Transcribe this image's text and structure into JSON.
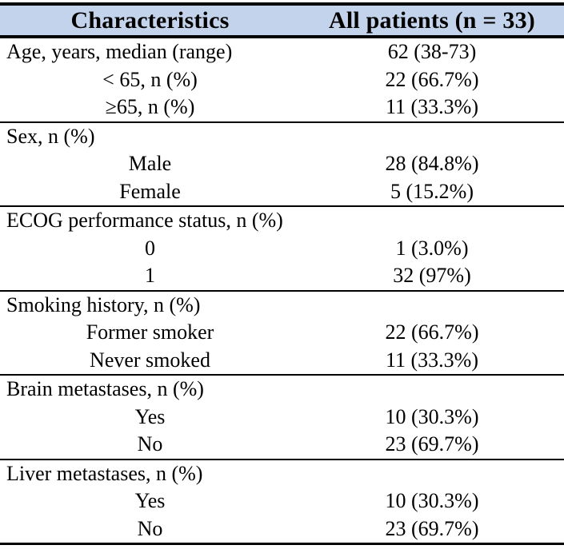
{
  "table": {
    "columns": [
      {
        "label": "Characteristics"
      },
      {
        "label": "All patients (n = 33)"
      }
    ],
    "colors": {
      "header_bg": "#C4D3EC",
      "rule": "#000000",
      "text": "#000000"
    },
    "sections": [
      {
        "rows": [
          {
            "label": "Age, years, median (range)",
            "value": "62 (38-73)",
            "indent": false
          },
          {
            "label": "< 65, n (%)",
            "value": "22 (66.7%)",
            "indent": true
          },
          {
            "label": "≥65, n (%)",
            "value": "11 (33.3%)",
            "indent": true
          }
        ]
      },
      {
        "rows": [
          {
            "label": "Sex, n (%)",
            "value": "",
            "indent": false
          },
          {
            "label": "Male",
            "value": "28 (84.8%)",
            "indent": true
          },
          {
            "label": "Female",
            "value": "5 (15.2%)",
            "indent": true
          }
        ]
      },
      {
        "rows": [
          {
            "label": "ECOG performance status, n (%)",
            "value": "",
            "indent": false
          },
          {
            "label": "0",
            "value": "1 (3.0%)",
            "indent": true
          },
          {
            "label": "1",
            "value": "32 (97%)",
            "indent": true
          }
        ]
      },
      {
        "rows": [
          {
            "label": "Smoking history, n (%)",
            "value": "",
            "indent": false
          },
          {
            "label": "Former smoker",
            "value": "22 (66.7%)",
            "indent": true
          },
          {
            "label": "Never smoked",
            "value": "11 (33.3%)",
            "indent": true
          }
        ]
      },
      {
        "rows": [
          {
            "label": "Brain metastases, n (%)",
            "value": "",
            "indent": false
          },
          {
            "label": "Yes",
            "value": "10 (30.3%)",
            "indent": true
          },
          {
            "label": "No",
            "value": "23 (69.7%)",
            "indent": true
          }
        ]
      },
      {
        "rows": [
          {
            "label": "Liver metastases, n (%)",
            "value": "",
            "indent": false
          },
          {
            "label": "Yes",
            "value": "10 (30.3%)",
            "indent": true
          },
          {
            "label": "No",
            "value": "23 (69.7%)",
            "indent": true
          }
        ]
      }
    ]
  }
}
